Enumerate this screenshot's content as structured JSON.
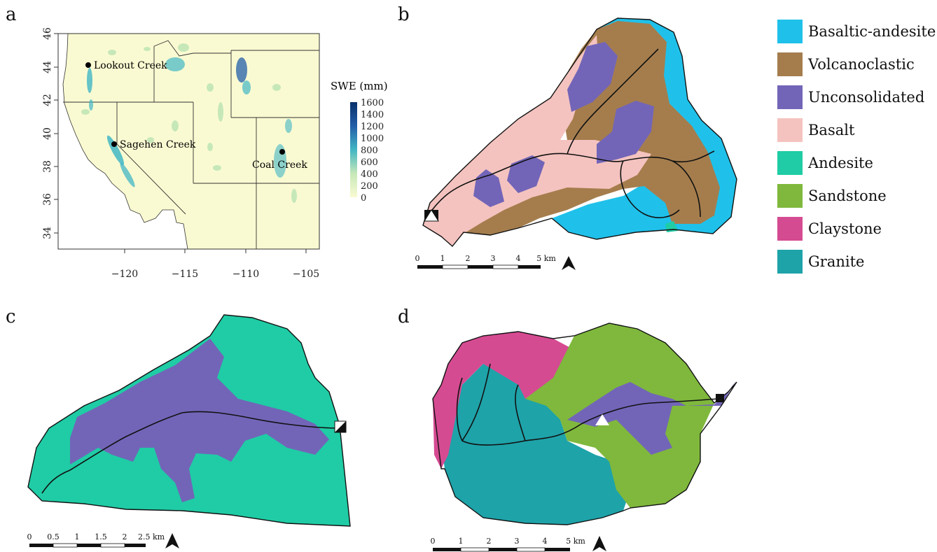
{
  "panels": {
    "a": "a",
    "b": "b",
    "c": "c",
    "d": "d"
  },
  "map_a": {
    "y_ticks": [
      "46",
      "44",
      "42",
      "40",
      "38",
      "36",
      "34"
    ],
    "x_ticks": [
      "−120",
      "−115",
      "−110",
      "−105"
    ],
    "sites": [
      "Lookout Creek",
      "Sagehen Creek",
      "Coal Creek"
    ],
    "colorbar_title": "SWE (mm)",
    "colorbar_ticks": [
      "1600",
      "1400",
      "1200",
      "1000",
      "800",
      "600",
      "400",
      "200",
      "0"
    ],
    "colors": {
      "land": "#fafad2",
      "water": "#ffffff",
      "snow_low": "#c6e8b9",
      "snow_mid": "#41b6c4",
      "snow_high": "#08306b"
    }
  },
  "legend": {
    "items": [
      {
        "label": "Basaltic-andesite",
        "color": "#1fc1ea"
      },
      {
        "label": "Volcanoclastic",
        "color": "#a57d4d"
      },
      {
        "label": "Unconsolidated",
        "color": "#7265b8"
      },
      {
        "label": "Basalt",
        "color": "#f4c3bf"
      },
      {
        "label": "Andesite",
        "color": "#1fcca5"
      },
      {
        "label": "Sandstone",
        "color": "#7fb83c"
      },
      {
        "label": "Claystone",
        "color": "#d54b92"
      },
      {
        "label": "Granite",
        "color": "#1ea3a9"
      }
    ]
  },
  "scalebars": {
    "b": {
      "labels": [
        "0",
        "1",
        "2",
        "3",
        "4",
        "5 km"
      ]
    },
    "c": {
      "labels": [
        "0",
        "0.5",
        "1",
        "1.5",
        "2",
        "2.5 km"
      ]
    },
    "d": {
      "labels": [
        "0",
        "1",
        "2",
        "3",
        "4",
        "5 km"
      ]
    }
  }
}
